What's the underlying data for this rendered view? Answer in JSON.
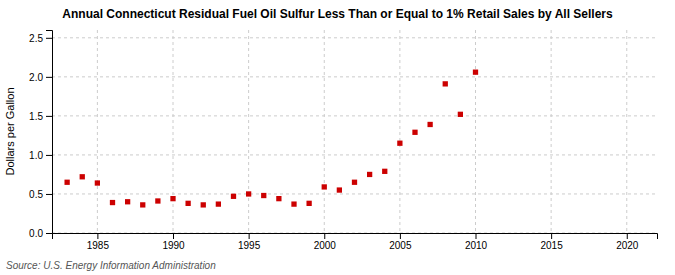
{
  "chart_data": {
    "type": "scatter",
    "title": "Annual Connecticut Residual Fuel Oil Sulfur Less Than or Equal to 1% Retail Sales by All Sellers",
    "ylabel": "Dollars per Gallon",
    "source": "Source: U.S. Energy Information Administration",
    "x": [
      1983,
      1984,
      1985,
      1986,
      1987,
      1988,
      1989,
      1990,
      1991,
      1992,
      1993,
      1994,
      1995,
      1996,
      1997,
      1998,
      1999,
      2000,
      2001,
      2002,
      2003,
      2004,
      2005,
      2006,
      2007,
      2008,
      2009,
      2010
    ],
    "values": [
      0.65,
      0.72,
      0.64,
      0.39,
      0.4,
      0.36,
      0.41,
      0.44,
      0.38,
      0.36,
      0.37,
      0.47,
      0.5,
      0.48,
      0.44,
      0.37,
      0.38,
      0.59,
      0.55,
      0.65,
      0.75,
      0.79,
      1.15,
      1.29,
      1.39,
      1.91,
      1.52,
      2.06
    ],
    "color": "#cc0000",
    "marker": "square",
    "xlim": [
      1982,
      2022
    ],
    "ylim": [
      0.0,
      2.6
    ],
    "xticks": [
      1985,
      1990,
      1995,
      2000,
      2005,
      2010,
      2015,
      2020
    ],
    "yticks": [
      {
        "value": 0,
        "label": "0.0"
      },
      0.5,
      {
        "value": 1,
        "label": "1.0"
      },
      1.5,
      {
        "value": 2,
        "label": "2.0"
      },
      2.5
    ],
    "grid": true
  }
}
